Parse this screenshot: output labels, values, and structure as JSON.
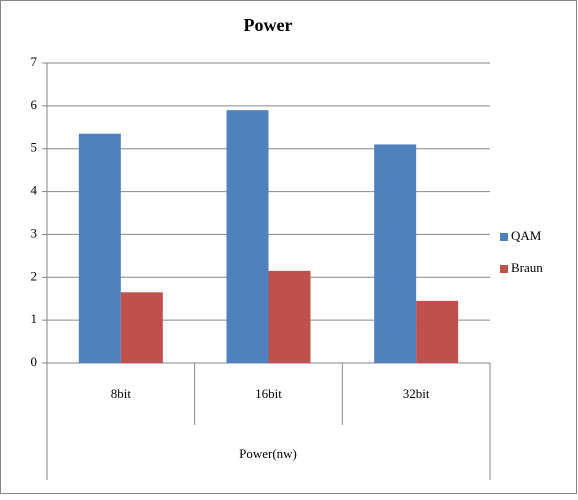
{
  "chart_data": {
    "type": "bar",
    "title": "Power",
    "categories": [
      "8bit",
      "16bit",
      "32bit"
    ],
    "xlabel": "Power(nw)",
    "series": [
      {
        "name": "QAM",
        "color": "#4f81bd",
        "values": [
          5.35,
          5.9,
          5.1
        ]
      },
      {
        "name": "Braun",
        "color": "#c0504d",
        "values": [
          1.65,
          2.15,
          1.45
        ]
      }
    ],
    "ylim": [
      0,
      7
    ],
    "yticks": [
      0,
      1,
      2,
      3,
      4,
      5,
      6,
      7
    ],
    "grid": true,
    "legend": "right"
  }
}
